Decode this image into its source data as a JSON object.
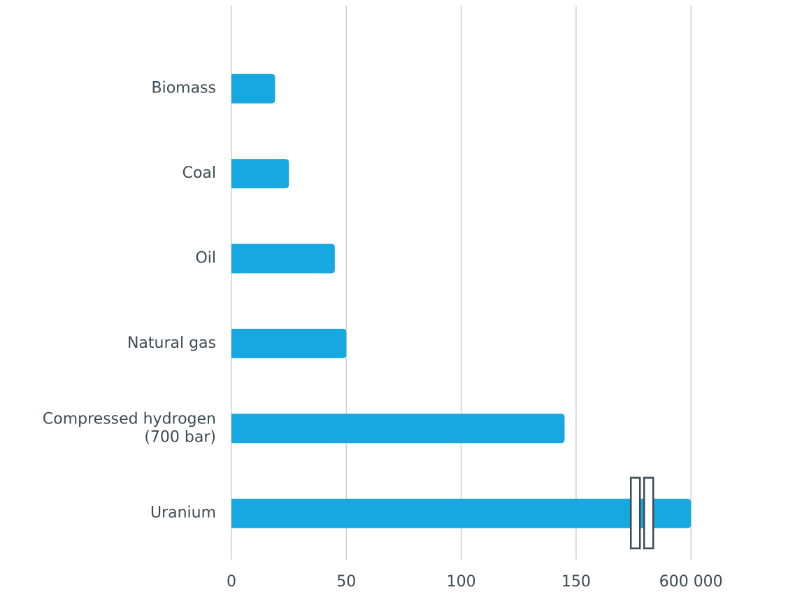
{
  "chart_data": {
    "type": "bar",
    "orientation": "horizontal",
    "categories": [
      "Biomass",
      "Coal",
      "Oil",
      "Natural gas",
      "Compressed hydrogen\n(700 bar)",
      "Uranium"
    ],
    "values": [
      19,
      25,
      45,
      50,
      145,
      600000
    ],
    "color": "#17a8e1",
    "xlim": [
      0,
      600000
    ],
    "xticks": [
      0,
      50,
      100,
      150,
      {
        "value": 600000,
        "label": "600 000"
      }
    ],
    "axis_break": true,
    "grid": true
  }
}
